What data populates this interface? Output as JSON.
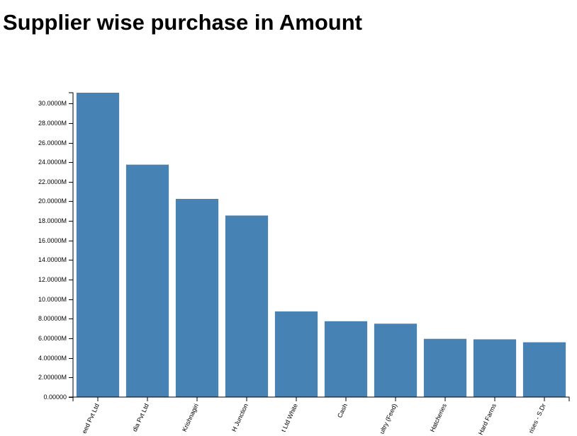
{
  "title": "Supplier wise purchase in Amount",
  "chart_data": {
    "type": "bar",
    "categories": [
      "eed Pvt Ltd",
      "dia Pvt Ltd",
      "Krishnagiri",
      "H Junction",
      "t Ltd White",
      "Cash",
      "ultry (Feed)",
      "Hatcheries",
      "Hard Farms",
      "rises - S.Dr"
    ],
    "values": [
      31100000,
      23750000,
      20250000,
      18550000,
      8750000,
      7750000,
      7500000,
      5950000,
      5900000,
      5600000
    ],
    "y_ticks": [
      "0.00000",
      "2.00000M",
      "4.00000M",
      "6.00000M",
      "8.00000M",
      "10.0000M",
      "12.0000M",
      "14.0000M",
      "16.0000M",
      "18.0000M",
      "20.0000M",
      "22.0000M",
      "24.0000M",
      "26.0000M",
      "28.0000M",
      "30.0000M"
    ],
    "ylim": [
      0,
      31100000
    ],
    "xlabel": "",
    "ylabel": "",
    "bar_color": "#4682b4",
    "grid": false
  }
}
